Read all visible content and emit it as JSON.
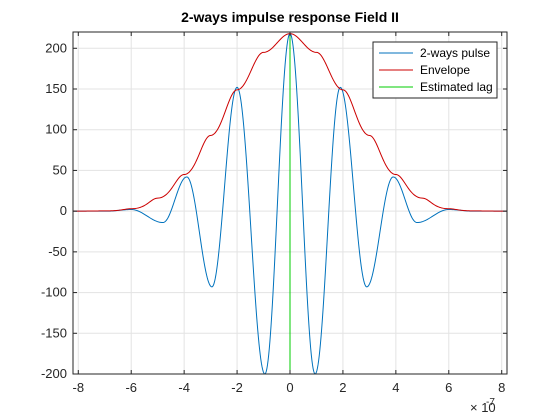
{
  "figure": {
    "background": "#ffffff"
  },
  "chart_data": {
    "type": "line",
    "title": "2-ways impulse response Field II",
    "xlabel": "",
    "ylabel": "",
    "xlim": [
      -8.2,
      8.2
    ],
    "ylim": [
      -200,
      220
    ],
    "x_exponent_base": "× 10",
    "x_exponent_power": "-7",
    "xticks": [
      -8,
      -6,
      -4,
      -2,
      0,
      2,
      4,
      6,
      8
    ],
    "xtick_labels": [
      "-8",
      "-6",
      "-4",
      "-2",
      "0",
      "2",
      "4",
      "6",
      "8"
    ],
    "yticks": [
      -200,
      -150,
      -100,
      -50,
      0,
      50,
      100,
      150,
      200
    ],
    "ytick_labels": [
      "-200",
      "-150",
      "-100",
      "-50",
      "0",
      "50",
      "100",
      "150",
      "200"
    ],
    "grid": true,
    "box": true,
    "legend_position": "top-right",
    "series": [
      {
        "name": "2-ways pulse",
        "color": "#0072BD",
        "kind": "pulse",
        "support": [
          -6.9,
          6.9
        ],
        "points": [
          [
            -6.9,
            0
          ],
          [
            -6.0,
            2
          ],
          [
            -4.8,
            -14
          ],
          [
            -3.9,
            42
          ],
          [
            -2.95,
            -93
          ],
          [
            -2.0,
            152
          ],
          [
            -0.95,
            -200
          ],
          [
            0,
            218
          ],
          [
            0.95,
            -200
          ],
          [
            1.9,
            152
          ],
          [
            2.9,
            -93
          ],
          [
            3.9,
            42
          ],
          [
            4.8,
            -14
          ],
          [
            6.0,
            2
          ],
          [
            6.9,
            0
          ]
        ]
      },
      {
        "name": "Envelope",
        "color": "#CC0000",
        "kind": "envelope",
        "points": [
          [
            -8.2,
            0
          ],
          [
            -7,
            0.3
          ],
          [
            -6,
            3
          ],
          [
            -5,
            16
          ],
          [
            -4,
            45
          ],
          [
            -3,
            93
          ],
          [
            -2,
            149
          ],
          [
            -1,
            195
          ],
          [
            0,
            218
          ],
          [
            1,
            195
          ],
          [
            2,
            149
          ],
          [
            3,
            93
          ],
          [
            4,
            45
          ],
          [
            5,
            16
          ],
          [
            6,
            3
          ],
          [
            7,
            0.3
          ],
          [
            8.2,
            0
          ]
        ]
      },
      {
        "name": "Estimated lag",
        "color": "#00CC00",
        "kind": "vline",
        "x": 0,
        "ylim": [
          -200,
          218
        ]
      }
    ]
  }
}
